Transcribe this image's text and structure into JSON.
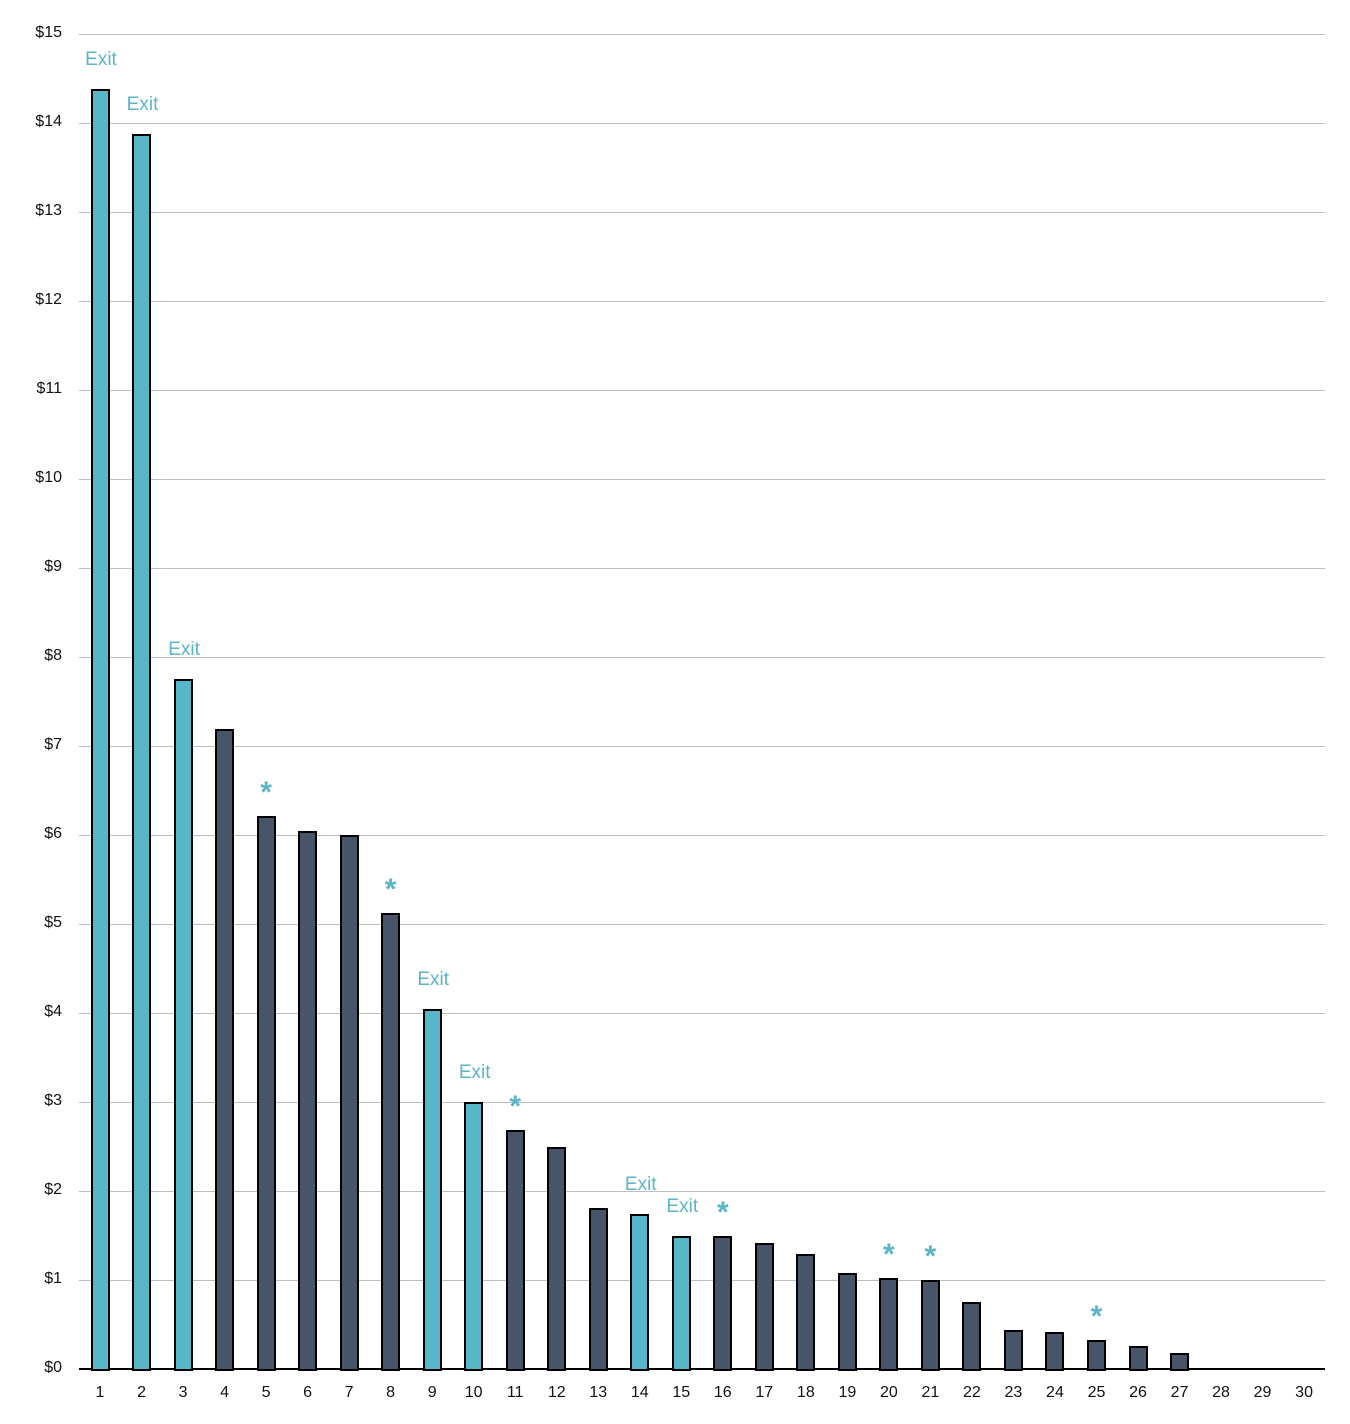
{
  "chart_data": {
    "type": "bar",
    "title": "",
    "xlabel": "",
    "ylabel": "",
    "ylim": [
      0,
      15
    ],
    "grid": true,
    "y_ticks": [
      "$0",
      "$1",
      "$2",
      "$3",
      "$4",
      "$5",
      "$6",
      "$7",
      "$8",
      "$9",
      "$10",
      "$11",
      "$12",
      "$13",
      "$14",
      "$15"
    ],
    "categories": [
      "1",
      "2",
      "3",
      "4",
      "5",
      "6",
      "7",
      "8",
      "9",
      "10",
      "11",
      "12",
      "13",
      "14",
      "15",
      "16",
      "17",
      "18",
      "19",
      "20",
      "21",
      "22",
      "23",
      "24",
      "25",
      "26",
      "27",
      "28",
      "29",
      "30"
    ],
    "values": [
      14.38,
      13.88,
      7.75,
      7.19,
      6.21,
      6.04,
      6.0,
      5.12,
      4.04,
      3.0,
      2.69,
      2.5,
      1.81,
      1.74,
      1.49,
      1.49,
      1.42,
      1.29,
      1.08,
      1.02,
      1.0,
      0.75,
      0.44,
      0.42,
      0.33,
      0.26,
      0.18,
      0,
      0,
      0
    ],
    "bar_type": [
      "exit",
      "exit",
      "exit",
      "normal",
      "normal",
      "normal",
      "normal",
      "normal",
      "exit",
      "exit",
      "normal",
      "normal",
      "normal",
      "exit",
      "exit",
      "normal",
      "normal",
      "normal",
      "normal",
      "normal",
      "normal",
      "normal",
      "normal",
      "normal",
      "normal",
      "normal",
      "normal",
      "none",
      "none",
      "none"
    ],
    "annotations": [
      "Exit",
      "Exit",
      "Exit",
      "",
      "*",
      "",
      "",
      "*",
      "Exit",
      "Exit",
      "*",
      "",
      "",
      "Exit",
      "Exit",
      "*",
      "",
      "",
      "",
      "*",
      "*",
      "",
      "",
      "",
      "*",
      "",
      "",
      "",
      "",
      ""
    ],
    "colors": {
      "exit": "#57b6c7",
      "normal": "#485568",
      "annotation": "#5ab6c7",
      "grid": "#bdbdbd"
    }
  }
}
